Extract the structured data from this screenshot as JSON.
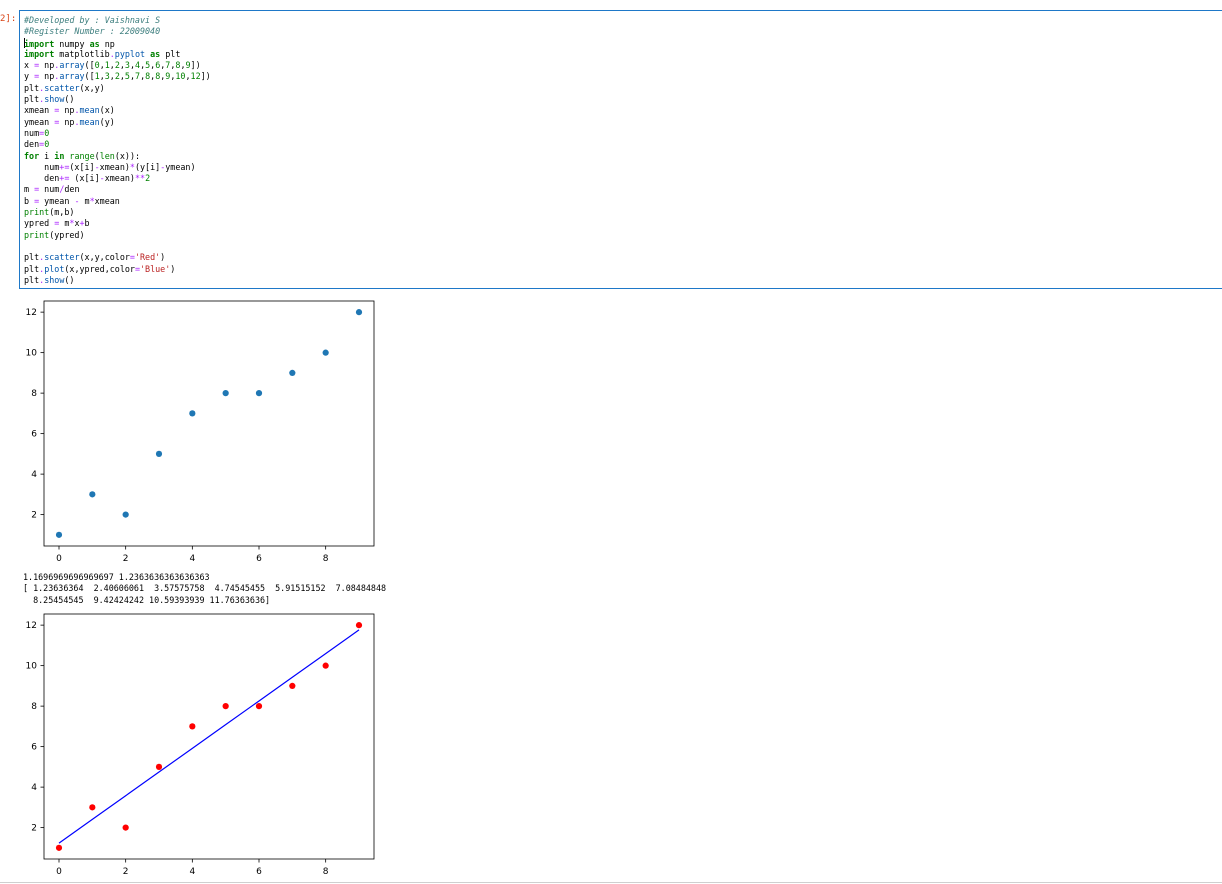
{
  "cell": {
    "prompt": "2]:",
    "code_lines": [
      [
        {
          "t": "#Developed by : Vaishnavi S",
          "c": "cmt"
        }
      ],
      [
        {
          "t": "#Register Number : 22009040",
          "c": "cmt"
        }
      ],
      [
        {
          "t": "import",
          "c": "kw"
        },
        {
          "t": " numpy "
        },
        {
          "t": "as",
          "c": "kw"
        },
        {
          "t": " np"
        }
      ],
      [
        {
          "t": "import",
          "c": "kw"
        },
        {
          "t": " matplotlib"
        },
        {
          "t": ".",
          "c": "op"
        },
        {
          "t": "pyplot",
          "c": "fn"
        },
        {
          "t": " "
        },
        {
          "t": "as",
          "c": "kw"
        },
        {
          "t": " plt"
        }
      ],
      [
        {
          "t": "x "
        },
        {
          "t": "=",
          "c": "op"
        },
        {
          "t": " np"
        },
        {
          "t": ".",
          "c": "op"
        },
        {
          "t": "array",
          "c": "fn"
        },
        {
          "t": "(["
        },
        {
          "t": "0",
          "c": "num"
        },
        {
          "t": ","
        },
        {
          "t": "1",
          "c": "num"
        },
        {
          "t": ","
        },
        {
          "t": "2",
          "c": "num"
        },
        {
          "t": ","
        },
        {
          "t": "3",
          "c": "num"
        },
        {
          "t": ","
        },
        {
          "t": "4",
          "c": "num"
        },
        {
          "t": ","
        },
        {
          "t": "5",
          "c": "num"
        },
        {
          "t": ","
        },
        {
          "t": "6",
          "c": "num"
        },
        {
          "t": ","
        },
        {
          "t": "7",
          "c": "num"
        },
        {
          "t": ","
        },
        {
          "t": "8",
          "c": "num"
        },
        {
          "t": ","
        },
        {
          "t": "9",
          "c": "num"
        },
        {
          "t": "])"
        }
      ],
      [
        {
          "t": "y "
        },
        {
          "t": "=",
          "c": "op"
        },
        {
          "t": " np"
        },
        {
          "t": ".",
          "c": "op"
        },
        {
          "t": "array",
          "c": "fn"
        },
        {
          "t": "(["
        },
        {
          "t": "1",
          "c": "num"
        },
        {
          "t": ","
        },
        {
          "t": "3",
          "c": "num"
        },
        {
          "t": ","
        },
        {
          "t": "2",
          "c": "num"
        },
        {
          "t": ","
        },
        {
          "t": "5",
          "c": "num"
        },
        {
          "t": ","
        },
        {
          "t": "7",
          "c": "num"
        },
        {
          "t": ","
        },
        {
          "t": "8",
          "c": "num"
        },
        {
          "t": ","
        },
        {
          "t": "8",
          "c": "num"
        },
        {
          "t": ","
        },
        {
          "t": "9",
          "c": "num"
        },
        {
          "t": ","
        },
        {
          "t": "10",
          "c": "num"
        },
        {
          "t": ","
        },
        {
          "t": "12",
          "c": "num"
        },
        {
          "t": "])"
        }
      ],
      [
        {
          "t": "plt"
        },
        {
          "t": ".",
          "c": "op"
        },
        {
          "t": "scatter",
          "c": "fn"
        },
        {
          "t": "(x,y)"
        }
      ],
      [
        {
          "t": "plt"
        },
        {
          "t": ".",
          "c": "op"
        },
        {
          "t": "show",
          "c": "fn"
        },
        {
          "t": "()"
        }
      ],
      [
        {
          "t": "xmean "
        },
        {
          "t": "=",
          "c": "op"
        },
        {
          "t": " np"
        },
        {
          "t": ".",
          "c": "op"
        },
        {
          "t": "mean",
          "c": "fn"
        },
        {
          "t": "(x)"
        }
      ],
      [
        {
          "t": "ymean "
        },
        {
          "t": "=",
          "c": "op"
        },
        {
          "t": " np"
        },
        {
          "t": ".",
          "c": "op"
        },
        {
          "t": "mean",
          "c": "fn"
        },
        {
          "t": "(y)"
        }
      ],
      [
        {
          "t": "num"
        },
        {
          "t": "=",
          "c": "op"
        },
        {
          "t": "0",
          "c": "num"
        }
      ],
      [
        {
          "t": "den"
        },
        {
          "t": "=",
          "c": "op"
        },
        {
          "t": "0",
          "c": "num"
        }
      ],
      [
        {
          "t": "for",
          "c": "kw"
        },
        {
          "t": " i "
        },
        {
          "t": "in",
          "c": "kw"
        },
        {
          "t": " "
        },
        {
          "t": "range",
          "c": "num"
        },
        {
          "t": "("
        },
        {
          "t": "len",
          "c": "num"
        },
        {
          "t": "(x)):"
        }
      ],
      [
        {
          "t": "    num"
        },
        {
          "t": "+=",
          "c": "op"
        },
        {
          "t": "(x[i]"
        },
        {
          "t": "-",
          "c": "op"
        },
        {
          "t": "xmean)"
        },
        {
          "t": "*",
          "c": "op"
        },
        {
          "t": "(y[i]"
        },
        {
          "t": "-",
          "c": "op"
        },
        {
          "t": "ymean)"
        }
      ],
      [
        {
          "t": "    den"
        },
        {
          "t": "+=",
          "c": "op"
        },
        {
          "t": " (x[i]"
        },
        {
          "t": "-",
          "c": "op"
        },
        {
          "t": "xmean)"
        },
        {
          "t": "**",
          "c": "op"
        },
        {
          "t": "2",
          "c": "num"
        }
      ],
      [
        {
          "t": "m "
        },
        {
          "t": "=",
          "c": "op"
        },
        {
          "t": " num"
        },
        {
          "t": "/",
          "c": "op"
        },
        {
          "t": "den"
        }
      ],
      [
        {
          "t": "b "
        },
        {
          "t": "=",
          "c": "op"
        },
        {
          "t": " ymean "
        },
        {
          "t": "-",
          "c": "op"
        },
        {
          "t": " m"
        },
        {
          "t": "*",
          "c": "op"
        },
        {
          "t": "xmean"
        }
      ],
      [
        {
          "t": "print",
          "c": "num"
        },
        {
          "t": "(m,b)"
        }
      ],
      [
        {
          "t": "ypred "
        },
        {
          "t": "=",
          "c": "op"
        },
        {
          "t": " m"
        },
        {
          "t": "*",
          "c": "op"
        },
        {
          "t": "x"
        },
        {
          "t": "+",
          "c": "op"
        },
        {
          "t": "b"
        }
      ],
      [
        {
          "t": "print",
          "c": "num"
        },
        {
          "t": "(ypred)"
        }
      ],
      [],
      [
        {
          "t": "plt"
        },
        {
          "t": ".",
          "c": "op"
        },
        {
          "t": "scatter",
          "c": "fn"
        },
        {
          "t": "(x,y,color"
        },
        {
          "t": "=",
          "c": "op"
        },
        {
          "t": "'Red'",
          "c": "str"
        },
        {
          "t": ")"
        }
      ],
      [
        {
          "t": "plt"
        },
        {
          "t": ".",
          "c": "op"
        },
        {
          "t": "plot",
          "c": "fn"
        },
        {
          "t": "(x,ypred,color"
        },
        {
          "t": "=",
          "c": "op"
        },
        {
          "t": "'Blue'",
          "c": "str"
        },
        {
          "t": ")"
        }
      ],
      [
        {
          "t": "plt"
        },
        {
          "t": ".",
          "c": "op"
        },
        {
          "t": "show",
          "c": "fn"
        },
        {
          "t": "()"
        }
      ]
    ]
  },
  "output": {
    "text": "1.1696969696969697 1.2363636363636363\n[ 1.23636364  2.40606061  3.57575758  4.74545455  5.91515152  7.08484848\n  8.25454545  9.42424242 10.59393939 11.76363636]"
  },
  "chart_data": [
    {
      "type": "scatter",
      "x": [
        0,
        1,
        2,
        3,
        4,
        5,
        6,
        7,
        8,
        9
      ],
      "y": [
        1,
        3,
        2,
        5,
        7,
        8,
        8,
        9,
        10,
        12
      ],
      "xticks": [
        "0",
        "2",
        "4",
        "6",
        "8"
      ],
      "yticks": [
        "2",
        "4",
        "6",
        "8",
        "10",
        "12"
      ],
      "xlim": [
        -0.45,
        9.45
      ],
      "ylim": [
        0.45,
        12.55
      ],
      "point_color": "#1f77b4",
      "grid": false
    },
    {
      "type": "scatter",
      "x": [
        0,
        1,
        2,
        3,
        4,
        5,
        6,
        7,
        8,
        9
      ],
      "y": [
        1,
        3,
        2,
        5,
        7,
        8,
        8,
        9,
        10,
        12
      ],
      "line": {
        "x": [
          0,
          1,
          2,
          3,
          4,
          5,
          6,
          7,
          8,
          9
        ],
        "y": [
          1.23636364,
          2.40606061,
          3.57575758,
          4.74545455,
          5.91515152,
          7.08484848,
          8.25454545,
          9.42424242,
          10.59393939,
          11.76363636
        ],
        "color": "#0000ff"
      },
      "xticks": [
        "0",
        "2",
        "4",
        "6",
        "8"
      ],
      "yticks": [
        "2",
        "4",
        "6",
        "8",
        "10",
        "12"
      ],
      "xlim": [
        -0.45,
        9.45
      ],
      "ylim": [
        0.45,
        12.55
      ],
      "point_color": "#ff0000",
      "grid": false
    }
  ]
}
